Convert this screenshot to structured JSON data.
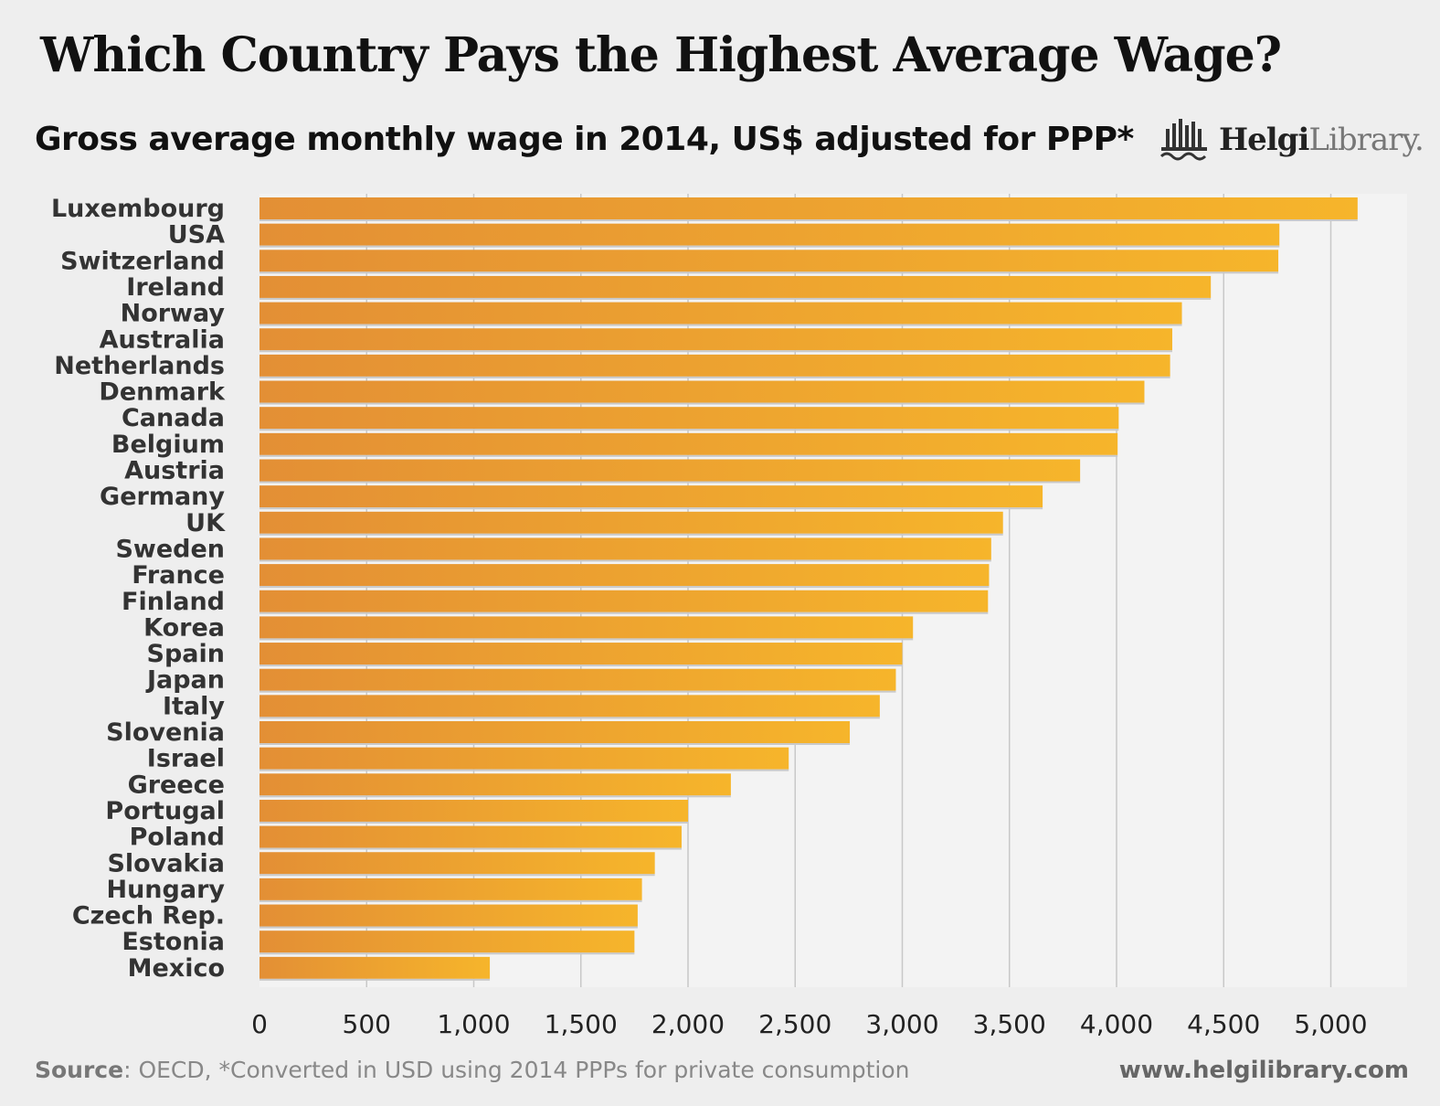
{
  "title": "Which Country Pays the Highest Average Wage?",
  "subtitle": "Gross average monthly wage in 2014, US$ adjusted for PPP*",
  "logo": {
    "bold": "Helgi",
    "light": "Library."
  },
  "footer": {
    "source_label": "Source",
    "source_text": ": OECD, *Converted in USD using 2014 PPPs for private consumption",
    "url": "www.helgilibrary.com"
  },
  "colors": {
    "bar_start": "#e38f35",
    "bar_end": "#f6b52b",
    "grid": "#c8c8c8"
  },
  "chart_data": {
    "type": "bar",
    "orientation": "horizontal",
    "title": "Which Country Pays the Highest Average Wage?",
    "subtitle": "Gross average monthly wage in 2014, US$ adjusted for PPP*",
    "xlabel": "",
    "ylabel": "",
    "xlim": [
      0,
      5250
    ],
    "grid": true,
    "ticks": [
      0,
      500,
      1000,
      1500,
      2000,
      2500,
      3000,
      3500,
      4000,
      4500,
      5000
    ],
    "tick_labels": [
      "0",
      "500",
      "1,000",
      "1,500",
      "2,000",
      "2,500",
      "3,000",
      "3,500",
      "4,000",
      "4,500",
      "5,000"
    ],
    "categories": [
      "Luxembourg",
      "USA",
      "Switzerland",
      "Ireland",
      "Norway",
      "Australia",
      "Netherlands",
      "Denmark",
      "Canada",
      "Belgium",
      "Austria",
      "Germany",
      "UK",
      "Sweden",
      "France",
      "Finland",
      "Korea",
      "Spain",
      "Japan",
      "Italy",
      "Slovenia",
      "Israel",
      "Greece",
      "Portugal",
      "Poland",
      "Slovakia",
      "Hungary",
      "Czech Rep.",
      "Estonia",
      "Mexico"
    ],
    "values": [
      5125,
      4760,
      4755,
      4440,
      4305,
      4260,
      4250,
      4130,
      4010,
      4005,
      3830,
      3655,
      3470,
      3415,
      3405,
      3400,
      3050,
      3000,
      2970,
      2895,
      2755,
      2470,
      2200,
      2000,
      1970,
      1845,
      1785,
      1765,
      1750,
      1075
    ]
  }
}
